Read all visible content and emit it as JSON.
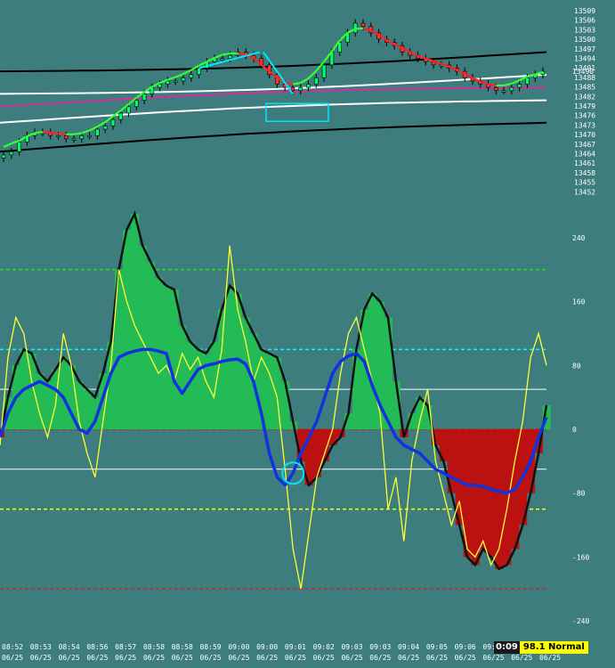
{
  "colors": {
    "background": "#3d7d7d",
    "bar_up": "#00ff66",
    "bar_down": "#ff3333",
    "trend_up": "#33ff33",
    "trend_down": "#ff2222",
    "band_outer": "#000000",
    "band_inner": "#ffffff",
    "mid_line": "#cc3399",
    "annotation": "#00e5ff",
    "hist_pos": "#22bb55",
    "hist_neg": "#bb1111",
    "hist_neutral": "#666666",
    "fast_line": "#ffff33",
    "slow_line": "#1133dd",
    "envelope": "#111111",
    "level_green": "#22dd22",
    "level_red": "#cc2222",
    "level_cyan": "#00ffff",
    "level_white": "#ffffff",
    "level_yellow": "#ffff00"
  },
  "chart_data": [
    {
      "type": "candlestick",
      "title": "",
      "ylim": [
        13449,
        13510
      ],
      "y_ticks": [
        "13509",
        "13506",
        "13503",
        "13500",
        "13497",
        "13494",
        "13491",
        "13488",
        "13485",
        "13482",
        "13479",
        "13476",
        "13473",
        "13470",
        "13467",
        "13464",
        "13461",
        "13458",
        "13455",
        "13452"
      ],
      "last_price": "13490",
      "close_series": [
        13464,
        13465,
        13468,
        13470,
        13471,
        13471,
        13470,
        13470,
        13469,
        13469,
        13470,
        13470,
        13472,
        13473,
        13475,
        13477,
        13479,
        13481,
        13483,
        13485,
        13486,
        13487,
        13487,
        13488,
        13489,
        13491,
        13493,
        13494,
        13494,
        13495,
        13496,
        13495,
        13494,
        13492,
        13489,
        13486,
        13485,
        13484,
        13485,
        13486,
        13488,
        13492,
        13496,
        13499,
        13502,
        13505,
        13504,
        13502,
        13500,
        13499,
        13498,
        13496,
        13495,
        13494,
        13493,
        13492,
        13492,
        13491,
        13490,
        13488,
        13487,
        13486,
        13485,
        13484,
        13484,
        13485,
        13486,
        13488,
        13489,
        13490
      ],
      "channel_lines": [
        {
          "name": "outer-upper",
          "color": "band_outer",
          "from": 13490,
          "to": 13496
        },
        {
          "name": "inner-upper",
          "color": "band_inner",
          "from": 13483,
          "to": 13489
        },
        {
          "name": "mid",
          "color": "mid_line",
          "from": 13479,
          "to": 13485
        },
        {
          "name": "inner-lower",
          "color": "band_inner",
          "from": 13474,
          "to": 13481
        },
        {
          "name": "outer-lower",
          "color": "band_outer",
          "from": 13465,
          "to": 13474
        }
      ],
      "annotations": [
        "up-arrow",
        "down-arrow",
        "highlight-box"
      ]
    },
    {
      "type": "oscillator",
      "title": "",
      "ylim": [
        -260,
        270
      ],
      "y_ticks": [
        240,
        160,
        80,
        0,
        -80,
        -160,
        -240
      ],
      "levels": [
        {
          "value": 200,
          "color": "level_green",
          "style": "dashed"
        },
        {
          "value": 100,
          "color": "level_cyan",
          "style": "dashed"
        },
        {
          "value": 50,
          "color": "level_white",
          "style": "solid"
        },
        {
          "value": 0,
          "color": "level_red",
          "style": "dashed"
        },
        {
          "value": -50,
          "color": "level_white",
          "style": "solid"
        },
        {
          "value": -100,
          "color": "level_yellow",
          "style": "dashed"
        },
        {
          "value": -200,
          "color": "level_red",
          "style": "dashed"
        }
      ],
      "histogram": [
        -10,
        40,
        80,
        100,
        95,
        70,
        60,
        75,
        90,
        80,
        60,
        50,
        40,
        70,
        110,
        200,
        250,
        270,
        230,
        210,
        190,
        180,
        175,
        130,
        110,
        100,
        95,
        110,
        150,
        180,
        170,
        140,
        120,
        100,
        95,
        90,
        60,
        10,
        -40,
        -70,
        -60,
        -40,
        -20,
        -10,
        20,
        100,
        150,
        170,
        160,
        140,
        60,
        -10,
        20,
        40,
        30,
        -20,
        -40,
        -80,
        -120,
        -160,
        -170,
        -150,
        -160,
        -175,
        -170,
        -150,
        -120,
        -80,
        -30,
        30
      ],
      "fast_line": [
        -20,
        90,
        140,
        120,
        60,
        20,
        -10,
        30,
        120,
        80,
        10,
        -30,
        -60,
        10,
        80,
        200,
        160,
        130,
        110,
        90,
        70,
        80,
        60,
        95,
        75,
        90,
        60,
        40,
        100,
        230,
        150,
        110,
        60,
        90,
        70,
        40,
        -50,
        -150,
        -200,
        -130,
        -60,
        -30,
        0,
        70,
        120,
        140,
        100,
        60,
        20,
        -100,
        -60,
        -140,
        -40,
        10,
        50,
        -40,
        -80,
        -120,
        -90,
        -150,
        -160,
        -140,
        -170,
        -150,
        -100,
        -40,
        10,
        90,
        120,
        80
      ],
      "slow_line": [
        -10,
        20,
        40,
        50,
        55,
        60,
        55,
        50,
        40,
        20,
        0,
        -5,
        10,
        40,
        70,
        90,
        95,
        98,
        100,
        100,
        98,
        95,
        60,
        45,
        60,
        75,
        80,
        82,
        85,
        87,
        88,
        82,
        60,
        20,
        -30,
        -60,
        -70,
        -55,
        -30,
        -10,
        10,
        40,
        70,
        85,
        92,
        95,
        85,
        55,
        30,
        10,
        -10,
        -20,
        -25,
        -30,
        -40,
        -50,
        -55,
        -60,
        -65,
        -70,
        -70,
        -72,
        -75,
        -78,
        -80,
        -75,
        -60,
        -40,
        -10,
        15
      ]
    }
  ],
  "x_axis": {
    "times": [
      "08:52",
      "08:53",
      "08:54",
      "08:56",
      "08:57",
      "08:58",
      "08:58",
      "08:59",
      "09:00",
      "09:00",
      "09:01",
      "09:02",
      "09:03",
      "09:03",
      "09:04",
      "09:05",
      "09:06",
      "09:07",
      "09:07",
      "09:09"
    ],
    "dates": [
      "06/25",
      "06/25",
      "06/25",
      "06/25",
      "06/25",
      "06/25",
      "06/25",
      "06/25",
      "06/25",
      "06/25",
      "06/25",
      "06/25",
      "06/25",
      "06/25",
      "06/25",
      "06/25",
      "06/25",
      "06/25",
      "06/25",
      "06/25"
    ]
  },
  "status": {
    "clock": "0:09",
    "mode": "98.1 Normal"
  }
}
